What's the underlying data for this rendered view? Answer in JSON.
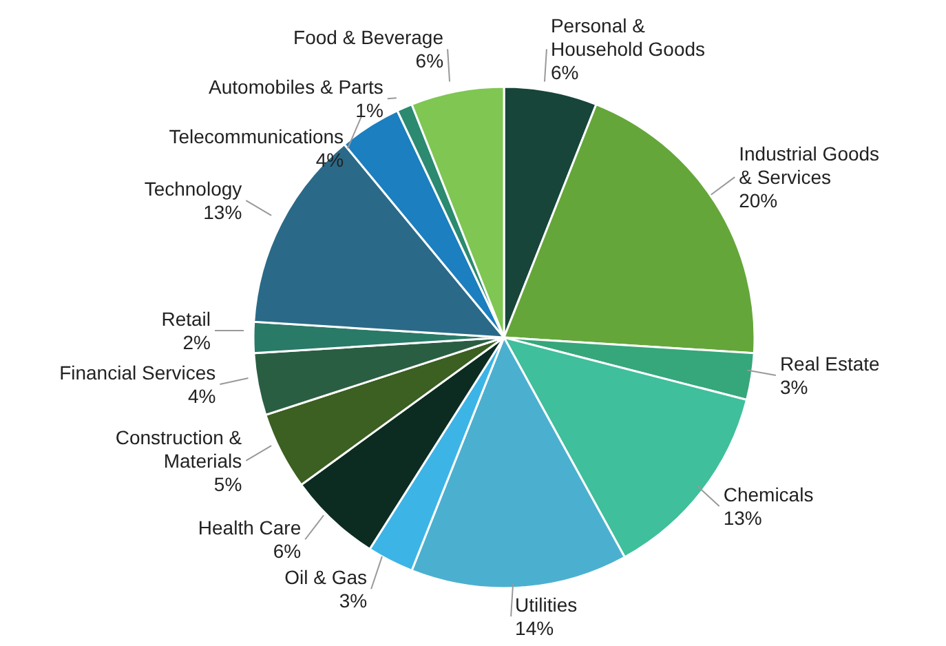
{
  "chart_data": {
    "type": "pie",
    "categories": [
      "Personal & Household Goods",
      "Industrial Goods & Services",
      "Real Estate",
      "Chemicals",
      "Utilities",
      "Oil & Gas",
      "Health Care",
      "Construction & Materials",
      "Financial Services",
      "Retail",
      "Technology",
      "Telecommunications",
      "Automobiles & Parts",
      "Food & Beverage"
    ],
    "values": [
      6,
      20,
      3,
      13,
      14,
      3,
      6,
      5,
      4,
      2,
      13,
      4,
      1,
      6
    ],
    "value_labels": [
      "6%",
      "20%",
      "3%",
      "13%",
      "14%",
      "3%",
      "6%",
      "5%",
      "4%",
      "2%",
      "13%",
      "4%",
      "1%",
      "6%"
    ],
    "colors": [
      "#17453a",
      "#65a63a",
      "#35a77b",
      "#3fbf9c",
      "#4bb0cf",
      "#3db4e6",
      "#0c2c22",
      "#3c5f22",
      "#2a5e42",
      "#2a7a68",
      "#2a6a88",
      "#1b7fc0",
      "#2b8a70",
      "#7fc652"
    ],
    "legend": false
  }
}
